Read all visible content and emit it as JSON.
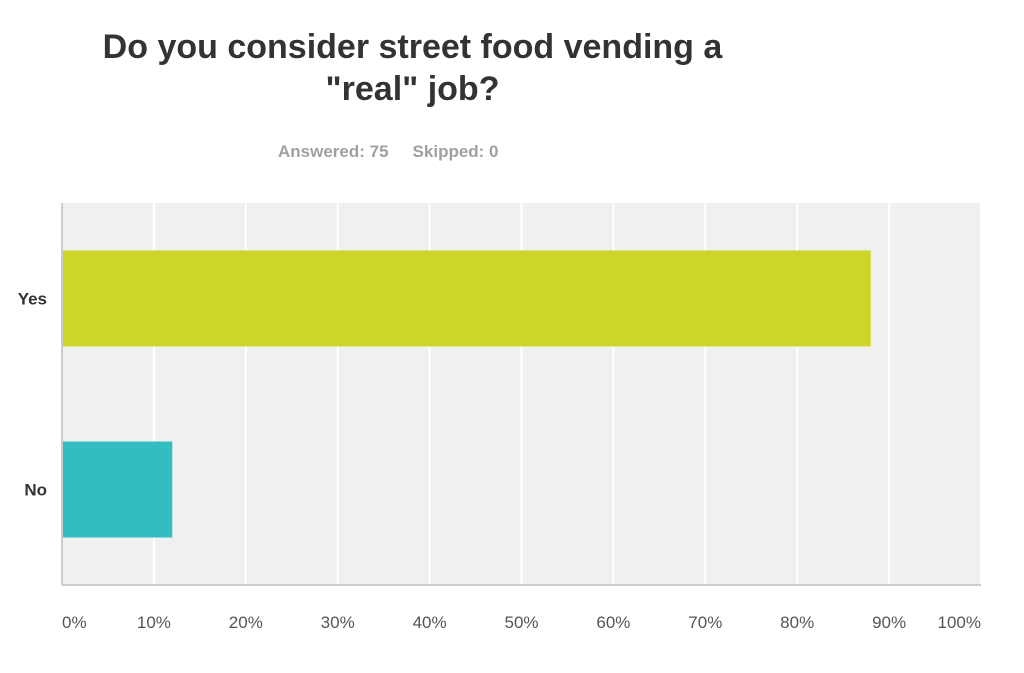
{
  "header": {
    "title_line1": "Do you consider street food vending a",
    "title_line2": "\"real\" job?",
    "answered": "Answered: 75",
    "skipped": "Skipped: 0"
  },
  "chart_data": {
    "type": "bar",
    "orientation": "horizontal",
    "title": "Do you consider street food vending a \"real\" job?",
    "categories": [
      "Yes",
      "No"
    ],
    "values": [
      88,
      12
    ],
    "value_unit": "%",
    "colors": [
      "#cdd627",
      "#33bdc0"
    ],
    "xlim": [
      0,
      100
    ],
    "x_ticks": [
      0,
      10,
      20,
      30,
      40,
      50,
      60,
      70,
      80,
      90,
      100
    ],
    "x_tick_labels": [
      "0%",
      "10%",
      "20%",
      "30%",
      "40%",
      "50%",
      "60%",
      "70%",
      "80%",
      "90%",
      "100%"
    ],
    "grid": true,
    "background": "#f0f0f0",
    "grid_color": "#ffffff",
    "axis_color": "#cccccc"
  }
}
